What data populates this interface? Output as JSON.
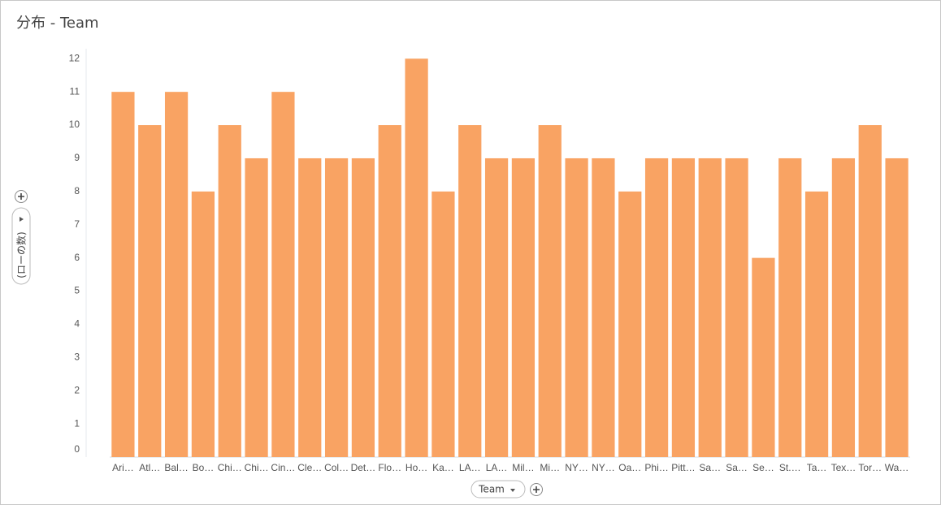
{
  "chart_data": {
    "type": "bar",
    "title": "分布 - Team",
    "x_label": "Team",
    "y_label": "(ローの数)",
    "categories": [
      "Ari…",
      "Atl…",
      "Bal…",
      "Bo…",
      "Chi…",
      "Chi…",
      "Cin…",
      "Cle…",
      "Col…",
      "Det…",
      "Flo…",
      "Ho…",
      "Ka…",
      "LA…",
      "LA…",
      "Mil…",
      "Mi…",
      "NY…",
      "NY…",
      "Oa…",
      "Phi…",
      "Pitt…",
      "Sa…",
      "Sa…",
      "Se…",
      "St.…",
      "Ta…",
      "Tex…",
      "Tor…",
      "Wa…"
    ],
    "values": [
      11,
      10,
      11,
      8,
      10,
      9,
      11,
      9,
      9,
      9,
      10,
      12,
      8,
      10,
      9,
      9,
      10,
      9,
      9,
      8,
      9,
      9,
      9,
      9,
      6,
      9,
      8,
      9,
      10,
      9
    ],
    "color": "#f9a363",
    "ylim": [
      0,
      12.3
    ],
    "yticks": [
      0,
      1,
      2,
      3,
      4,
      5,
      6,
      7,
      8,
      9,
      10,
      11,
      12
    ],
    "grid": false
  }
}
